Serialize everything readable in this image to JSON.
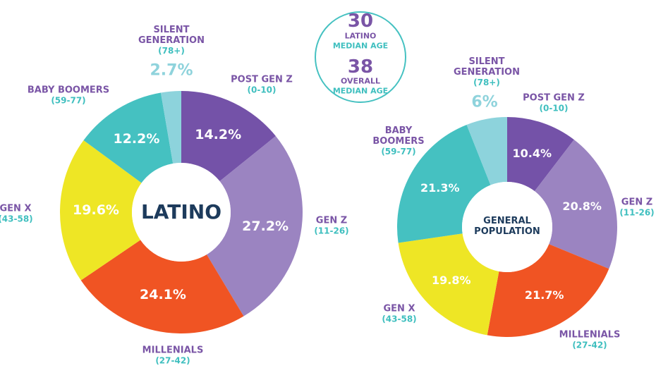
{
  "chart_data": [
    {
      "type": "donut",
      "center_label": "LATINO",
      "categories": [
        "POST GEN Z",
        "GEN Z",
        "MILLENIALS",
        "GEN X",
        "BABY BOOMERS",
        "SILENT GENERATION"
      ],
      "age_ranges": [
        "(0-10)",
        "(11-26)",
        "(27-42)",
        "(43-58)",
        "(59-77)",
        "(78+)"
      ],
      "values": [
        14.2,
        27.2,
        24.1,
        19.6,
        12.2,
        2.7
      ],
      "value_labels": [
        "14.2%",
        "27.2%",
        "24.1%",
        "19.6%",
        "12.2%",
        "2.7%"
      ],
      "colors": [
        "#7452a8",
        "#9b84c1",
        "#f05423",
        "#eee625",
        "#45c1c1",
        "#8dd3dc"
      ]
    },
    {
      "type": "donut",
      "center_label": "GENERAL POPULATION",
      "categories": [
        "POST GEN Z",
        "GEN Z",
        "MILLENIALS",
        "GEN X",
        "BABY BOOMERS",
        "SILENT GENERATION"
      ],
      "age_ranges": [
        "(0-10)",
        "(11-26)",
        "(27-42)",
        "(43-58)",
        "(59-77)",
        "(78+)"
      ],
      "values": [
        10.4,
        20.8,
        21.7,
        19.8,
        21.3,
        6
      ],
      "value_labels": [
        "10.4%",
        "20.8%",
        "21.7%",
        "19.8%",
        "21.3%",
        "6%"
      ],
      "colors": [
        "#7452a8",
        "#9b84c1",
        "#f05423",
        "#eee625",
        "#45c1c1",
        "#8dd3dc"
      ]
    }
  ],
  "badge": {
    "items": [
      {
        "value": 30,
        "label": "LATINO",
        "sublabel": "MEDIAN AGE"
      },
      {
        "value": 38,
        "label": "OVERALL",
        "sublabel": "MEDIAN AGE"
      }
    ]
  }
}
